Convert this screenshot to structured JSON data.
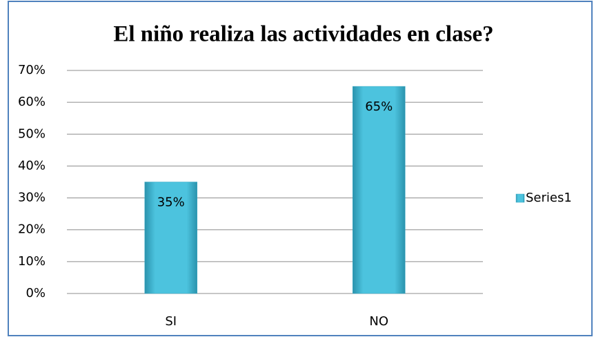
{
  "chart_data": {
    "type": "bar",
    "title": "El niño realiza las actividades en clase?",
    "categories": [
      "SI",
      "NO"
    ],
    "series": [
      {
        "name": "Series1",
        "color": "#4bc0dc",
        "values": [
          35,
          65
        ],
        "value_labels": [
          "35%",
          "65%"
        ]
      }
    ],
    "ylim": [
      0,
      70
    ],
    "yticks": [
      {
        "value": 0,
        "label": "0%"
      },
      {
        "value": 10,
        "label": "10%"
      },
      {
        "value": 20,
        "label": "20%"
      },
      {
        "value": 30,
        "label": "30%"
      },
      {
        "value": 40,
        "label": "40%"
      },
      {
        "value": 50,
        "label": "50%"
      },
      {
        "value": 60,
        "label": "60%"
      },
      {
        "value": 70,
        "label": "70%"
      }
    ],
    "grid": true,
    "legend": "right"
  }
}
